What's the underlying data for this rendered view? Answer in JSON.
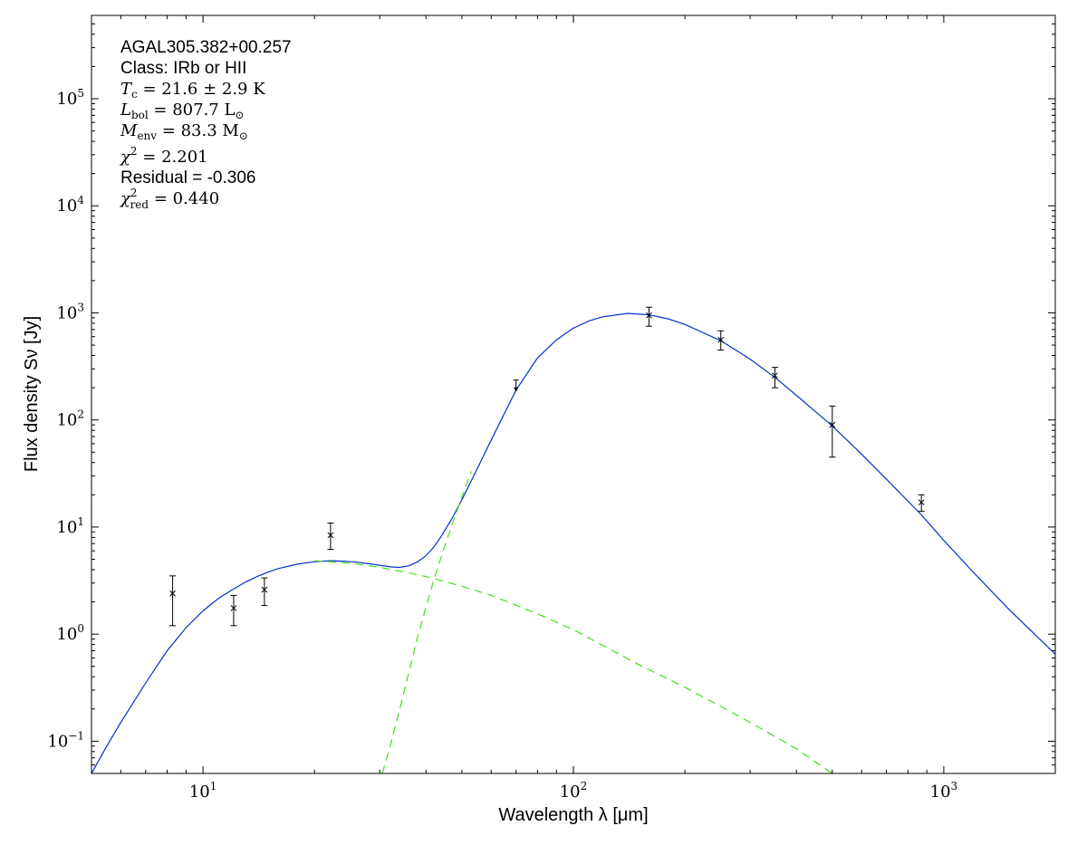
{
  "chart_data": {
    "type": "scatter",
    "xscale": "log",
    "yscale": "log",
    "xlim": [
      5.0,
      2000
    ],
    "ylim": [
      0.05,
      600000
    ],
    "xlabel": "Wavelength λ [μm]",
    "ylabel": "Flux density Sν [Jy]",
    "x_ticks": [
      {
        "value": 10,
        "base": "10",
        "exp": "1"
      },
      {
        "value": 100,
        "base": "10",
        "exp": "2"
      },
      {
        "value": 1000,
        "base": "10",
        "exp": "3"
      }
    ],
    "y_ticks": [
      {
        "value": 0.1,
        "base": "10",
        "exp": "−1"
      },
      {
        "value": 1,
        "base": "10",
        "exp": "0"
      },
      {
        "value": 10,
        "base": "10",
        "exp": "1"
      },
      {
        "value": 100,
        "base": "10",
        "exp": "2"
      },
      {
        "value": 1000,
        "base": "10",
        "exp": "3"
      },
      {
        "value": 10000,
        "base": "10",
        "exp": "4"
      },
      {
        "value": 100000,
        "base": "10",
        "exp": "5"
      }
    ],
    "annotations": {
      "source": "AGAL305.382+00.257",
      "class_line": "Class: IRb or HII",
      "tc": {
        "sym": "T",
        "sub": "c",
        "val": " = 21.6 ± 2.9 K"
      },
      "lbol": {
        "sym": "L",
        "sub": "bol",
        "val": " = 807.7 L",
        "unit_sub": "⊙"
      },
      "menv": {
        "sym": "M",
        "sub": "env",
        "val": " = 83.3 M",
        "unit_sub": "⊙"
      },
      "chi2": {
        "sym": "χ",
        "sup": "2",
        "val": " = 2.201"
      },
      "residual": "Residual = -0.306",
      "chi2red": {
        "sym": "χ",
        "sup": "2",
        "sub": "red",
        "val": " = 0.440"
      }
    },
    "measurements": [
      {
        "x": 8.28,
        "y": 2.4,
        "yerr_low": 1.2,
        "yerr_high": 3.5
      },
      {
        "x": 12.1,
        "y": 1.75,
        "yerr_low": 1.2,
        "yerr_high": 2.3
      },
      {
        "x": 14.65,
        "y": 2.6,
        "yerr_low": 1.85,
        "yerr_high": 3.35
      },
      {
        "x": 22.1,
        "y": 8.4,
        "yerr_low": 6.2,
        "yerr_high": 10.9
      },
      {
        "x": 160,
        "y": 950,
        "yerr_low": 750,
        "yerr_high": 1130
      },
      {
        "x": 250,
        "y": 560,
        "yerr_low": 450,
        "yerr_high": 680
      },
      {
        "x": 350,
        "y": 260,
        "yerr_low": 200,
        "yerr_high": 310
      },
      {
        "x": 500,
        "y": 90,
        "yerr_low": 45,
        "yerr_high": 135
      },
      {
        "x": 870,
        "y": 17,
        "yerr_low": 14,
        "yerr_high": 20
      }
    ],
    "upper_limits": [
      {
        "x": 70,
        "y": 210
      }
    ],
    "series": [
      {
        "style": "solid",
        "color": "#0033cc",
        "x": [
          5.0,
          5.5,
          6.0,
          7.0,
          8.0,
          9.0,
          10.0,
          11.0,
          12.0,
          13.0,
          14.0,
          15.0,
          16.0,
          18.0,
          20.0,
          22.0,
          24.0,
          26.0,
          28.0,
          30.0,
          32.0,
          34.0,
          36.0,
          38.0,
          40.0,
          42.0,
          44.0,
          47.0,
          50.0,
          55.0,
          60.0,
          70.0,
          80.0,
          90.0,
          100.0,
          110.0,
          120.0,
          140.0,
          160.0,
          180.0,
          200.0,
          250.0,
          300.0,
          350.0,
          400.0,
          500.0,
          600.0,
          700.0,
          870.0,
          1000.0,
          1200.0,
          1500.0,
          2000.0
        ],
        "y": [
          0.05,
          0.09,
          0.15,
          0.35,
          0.7,
          1.15,
          1.65,
          2.15,
          2.6,
          3.05,
          3.45,
          3.8,
          4.1,
          4.5,
          4.75,
          4.85,
          4.8,
          4.7,
          4.55,
          4.4,
          4.25,
          4.2,
          4.35,
          4.75,
          5.4,
          6.5,
          8.2,
          12.0,
          18.0,
          35.0,
          65.0,
          190.0,
          380.0,
          560.0,
          720.0,
          840.0,
          920.0,
          990.0,
          960.0,
          880.0,
          780.0,
          550.0,
          370.0,
          250.0,
          170.0,
          88.0,
          48.0,
          28.0,
          13.0,
          7.5,
          3.8,
          1.7,
          0.65
        ]
      },
      {
        "style": "dashed",
        "color": "#44dd22",
        "x": [
          20.0,
          25.0,
          30.0,
          35.0,
          40.0,
          50.0,
          60.0,
          80.0,
          100.0,
          150.0,
          200.0,
          300.0,
          400.0,
          500.0
        ],
        "y": [
          4.85,
          4.6,
          4.2,
          3.8,
          3.45,
          2.8,
          2.3,
          1.55,
          1.1,
          0.52,
          0.32,
          0.15,
          0.085,
          0.05
        ]
      },
      {
        "style": "dashed",
        "color": "#44dd22",
        "x": [
          30.5,
          32.0,
          34.0,
          36.0,
          38.0,
          40.0,
          42.0,
          44.0,
          47.0,
          50.0,
          53.0
        ],
        "y": [
          0.05,
          0.09,
          0.2,
          0.45,
          0.95,
          1.8,
          3.2,
          5.3,
          10.5,
          19.0,
          33.0
        ]
      }
    ]
  }
}
